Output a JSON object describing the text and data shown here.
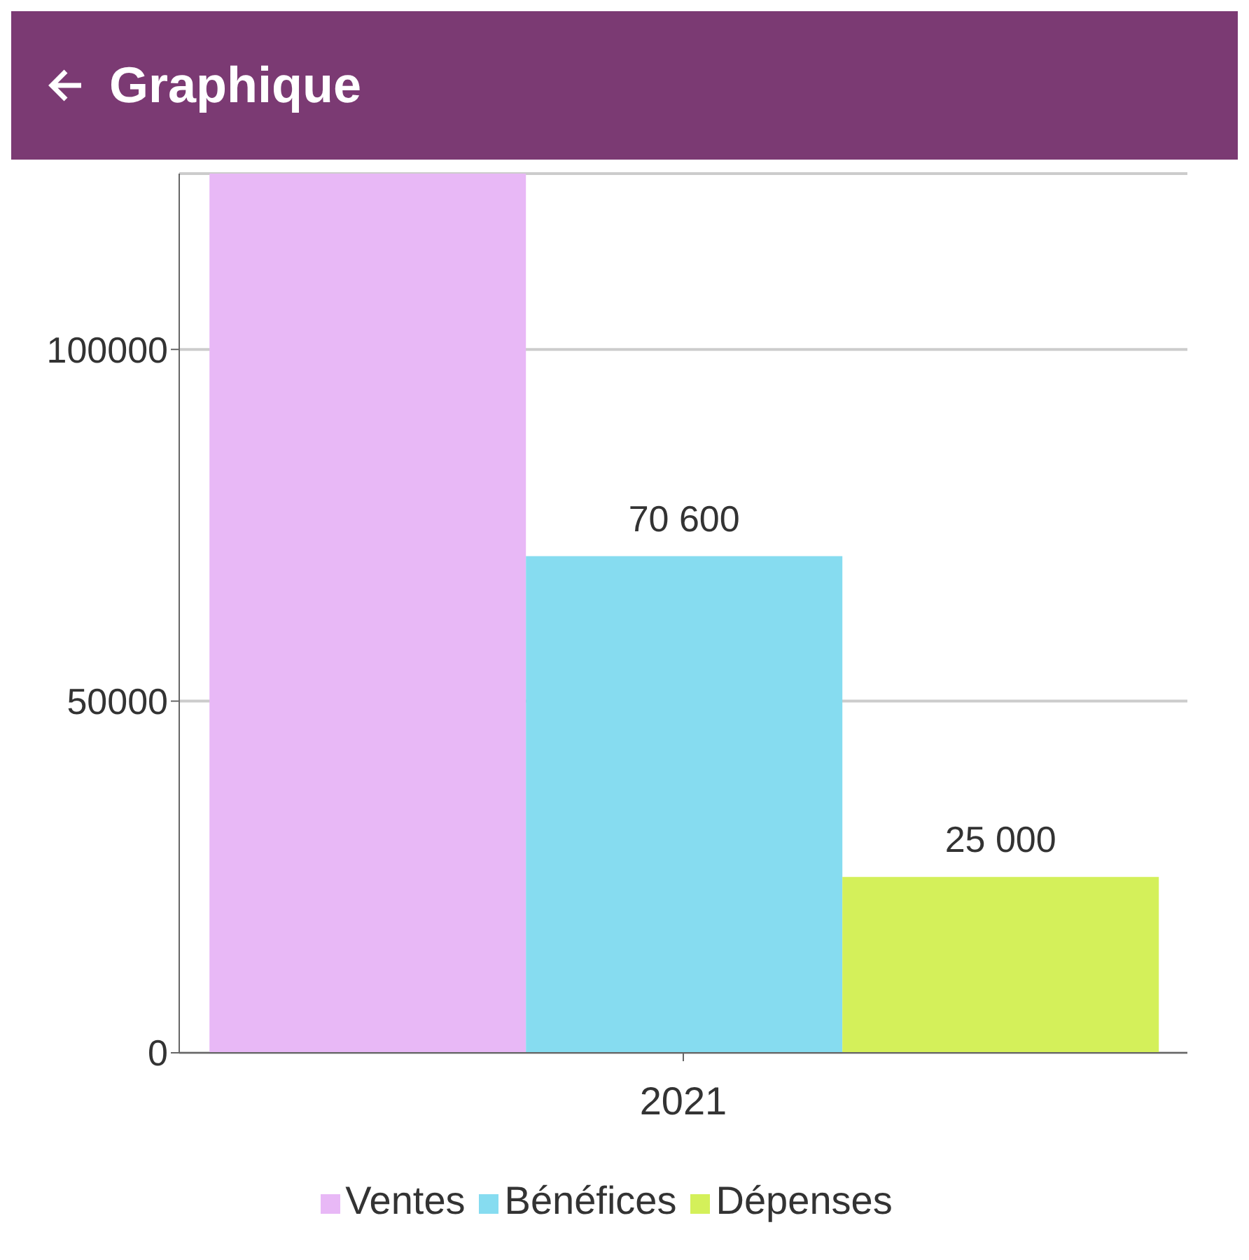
{
  "chart_data": {
    "type": "bar",
    "title": "Graphique",
    "categories": [
      "2021"
    ],
    "series": [
      {
        "name": "Ventes",
        "color": "#e8b8f6",
        "values": [
          125000
        ],
        "value_labels": [
          null
        ]
      },
      {
        "name": "Bénéfices",
        "color": "#86dcf0",
        "values": [
          70600
        ],
        "value_labels": [
          "70 600"
        ]
      },
      {
        "name": "Dépenses",
        "color": "#d4f05a",
        "values": [
          25000
        ],
        "value_labels": [
          "25 000"
        ]
      }
    ],
    "ylim": [
      0,
      125000
    ],
    "yticks": [
      0,
      50000,
      100000
    ],
    "grid": "y",
    "legend": "bottom"
  }
}
